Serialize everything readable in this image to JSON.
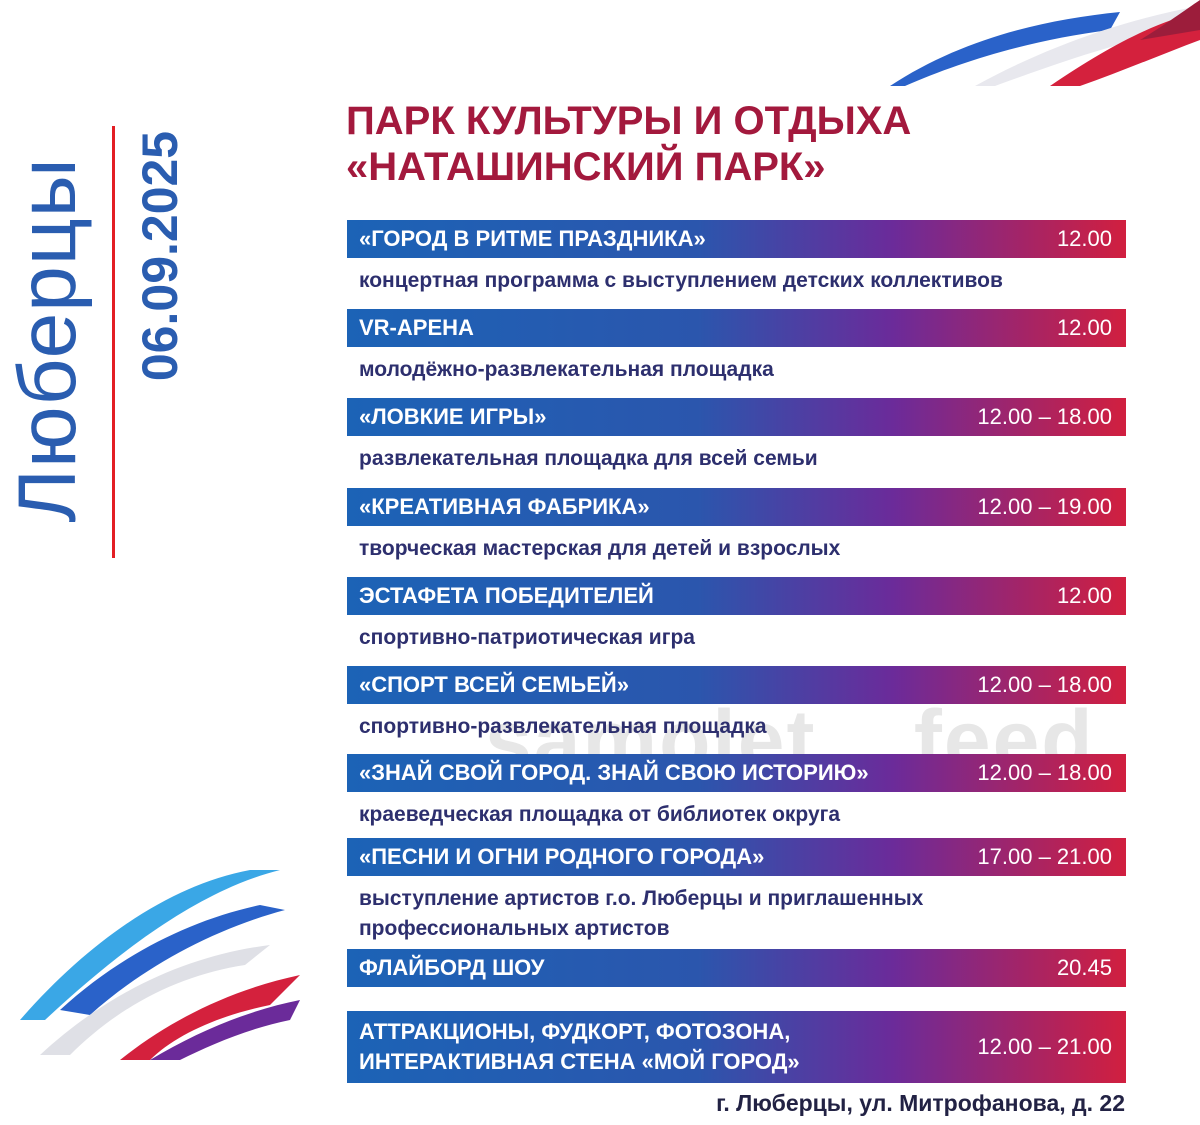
{
  "side": {
    "city": "Люберцы",
    "date": "06.09.2025"
  },
  "header": {
    "title_line1": "ПАРК КУЛЬТУРЫ И ОТДЫХА",
    "title_line2": "«НАТАШИНСКИЙ ПАРК»"
  },
  "events": [
    {
      "name": "«ГОРОД В РИТМЕ ПРАЗДНИКА»",
      "time": "12.00",
      "description": "концертная программа с выступлением детских коллективов"
    },
    {
      "name": "VR-АРЕНА",
      "time": "12.00",
      "description": "молодёжно-развлекательная площадка"
    },
    {
      "name": "«ЛОВКИЕ ИГРЫ»",
      "time": "12.00 – 18.00",
      "description": "развлекательная площадка для всей семьи"
    },
    {
      "name": "«КРЕАТИВНАЯ ФАБРИКА»",
      "time": "12.00 – 19.00",
      "description": "творческая мастерская для детей и взрослых"
    },
    {
      "name": "ЭСТАФЕТА ПОБЕДИТЕЛЕЙ",
      "time": "12.00",
      "description": "спортивно-патриотическая игра"
    },
    {
      "name": "«СПОРТ ВСЕЙ СЕМЬЕЙ»",
      "time": "12.00 – 18.00",
      "description": "спортивно-развлекательная площадка"
    },
    {
      "name": "«ЗНАЙ СВОЙ ГОРОД. ЗНАЙ СВОЮ ИСТОРИЮ»",
      "time": "12.00 – 18.00",
      "description": "краеведческая площадка от библиотек округа"
    },
    {
      "name": "«ПЕСНИ И ОГНИ РОДНОГО ГОРОДА»",
      "time": "17.00 – 21.00",
      "description": "выступление артистов г.о. Люберцы и приглашенных профессиональных артистов"
    },
    {
      "name": "ФЛАЙБОРД ШОУ",
      "time": "20.45",
      "description": ""
    },
    {
      "name": "АТТРАКЦИОНЫ, ФУДКОРТ, ФОТОЗОНА, ИНТЕРАКТИВНАЯ СТЕНА «МОЙ ГОРОД»",
      "time": "12.00 – 21.00",
      "description": ""
    }
  ],
  "footer": {
    "address": "г. Люберцы, ул. Митрофанова, д. 22"
  },
  "watermark": "samolet__feed",
  "colors": {
    "title": "#a3193d",
    "accent_blue": "#2a5db0",
    "accent_red": "#e31e24",
    "description_text": "#2d2f6e"
  }
}
